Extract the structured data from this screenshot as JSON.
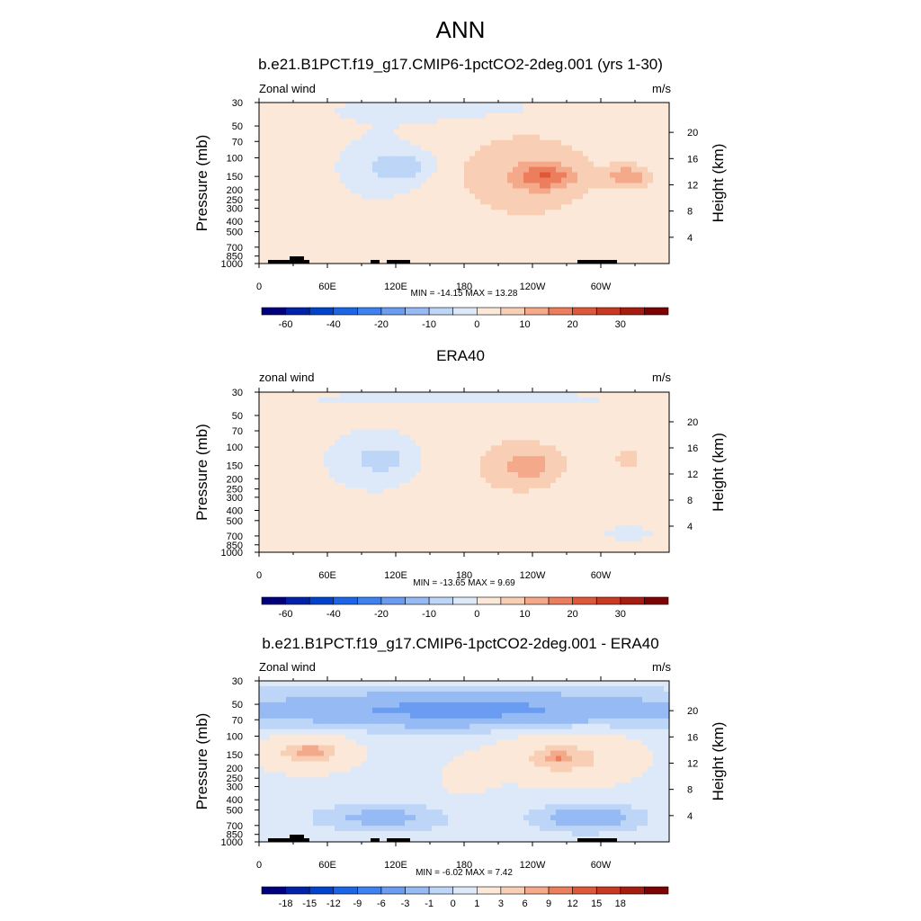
{
  "main_title": "ANN",
  "panels": [
    {
      "title": "b.e21.B1PCT.f19_g17.CMIP6-1pctCO2-2deg.001 (yrs 1-30)",
      "field_label": "Zonal wind",
      "units": "m/s",
      "stats": "MIN = -14.15  MAX =  13.28",
      "colorbar_labels": [
        "-60",
        "-40",
        "-20",
        "-10",
        "0",
        "10",
        "20",
        "30"
      ]
    },
    {
      "title": "ERA40",
      "field_label": "zonal wind",
      "units": "m/s",
      "stats": "MIN = -13.65  MAX =   9.69",
      "colorbar_labels": [
        "-60",
        "-40",
        "-20",
        "-10",
        "0",
        "10",
        "20",
        "30"
      ]
    },
    {
      "title": "b.e21.B1PCT.f19_g17.CMIP6-1pctCO2-2deg.001 - ERA40",
      "field_label": "Zonal wind",
      "units": "m/s",
      "stats": "MIN =  -6.02  MAX =   7.42",
      "colorbar_labels": [
        "-18",
        "-15",
        "-12",
        "-9",
        "-6",
        "-3",
        "-1",
        "0",
        "1",
        "3",
        "6",
        "9",
        "12",
        "15",
        "18"
      ]
    }
  ],
  "chart_data": [
    {
      "type": "heatmap",
      "title": "b.e21.B1PCT.f19_g17.CMIP6-1pctCO2-2deg.001 (yrs 1-30)",
      "subtitle": "Zonal wind",
      "units": "m/s",
      "xlabel": "",
      "ylabel": "Pressure (mb)",
      "y2label": "Height (km)",
      "x_ticks": [
        "0",
        "60E",
        "120E",
        "180",
        "120W",
        "60W"
      ],
      "y_ticks": [
        "30",
        "50",
        "70",
        "100",
        "150",
        "200",
        "250",
        "300",
        "400",
        "500",
        "700",
        "850",
        "1000"
      ],
      "y2_ticks": [
        "4",
        "8",
        "12",
        "16",
        "20"
      ],
      "xlim": [
        0,
        360
      ],
      "ylim": [
        1000,
        30
      ],
      "y_scale": "log",
      "contour_levels": [
        -70,
        -60,
        -50,
        -40,
        -30,
        -20,
        -15,
        -10,
        -5,
        0,
        5,
        10,
        15,
        20,
        25,
        30,
        40
      ],
      "min": -14.15,
      "max": 13.28,
      "colors": [
        "#00007f",
        "#0022a8",
        "#0044cc",
        "#1a66e6",
        "#3d82f0",
        "#6a9cf2",
        "#96baf4",
        "#bdd5f7",
        "#dde9f9",
        "#fbe8d8",
        "#f8cfb4",
        "#f3a98a",
        "#ec7e5d",
        "#e0583a",
        "#c93a22",
        "#a61c10",
        "#7d0202"
      ],
      "blobs": [
        {
          "x": 0.3,
          "y": 0.4,
          "rx": 0.12,
          "ry": 0.22,
          "value": -5
        },
        {
          "x": 0.36,
          "y": 0.4,
          "rx": 0.08,
          "ry": 0.1,
          "value": -8
        },
        {
          "x": 0.65,
          "y": 0.45,
          "rx": 0.22,
          "ry": 0.35,
          "value": 7
        },
        {
          "x": 0.7,
          "y": 0.46,
          "rx": 0.08,
          "ry": 0.09,
          "value": 13
        },
        {
          "x": 0.9,
          "y": 0.46,
          "rx": 0.06,
          "ry": 0.08,
          "value": 12
        },
        {
          "x": 0.18,
          "y": 0.88,
          "rx": 0.14,
          "ry": 0.08,
          "value": 3
        },
        {
          "x": 0.1,
          "y": 0.45,
          "rx": 0.03,
          "ry": 0.06,
          "value": 3
        },
        {
          "x": 0.5,
          "y": 0.05,
          "rx": 0.45,
          "ry": 0.12,
          "value": -3
        }
      ]
    },
    {
      "type": "heatmap",
      "title": "ERA40",
      "subtitle": "zonal wind",
      "units": "m/s",
      "xlabel": "",
      "ylabel": "Pressure (mb)",
      "y2label": "Height (km)",
      "x_ticks": [
        "0",
        "60E",
        "120E",
        "180",
        "120W",
        "60W"
      ],
      "y_ticks": [
        "30",
        "50",
        "70",
        "100",
        "150",
        "200",
        "250",
        "300",
        "400",
        "500",
        "700",
        "850",
        "1000"
      ],
      "y2_ticks": [
        "4",
        "8",
        "12",
        "16",
        "20"
      ],
      "xlim": [
        0,
        360
      ],
      "ylim": [
        1000,
        30
      ],
      "y_scale": "log",
      "contour_levels": [
        -70,
        -60,
        -50,
        -40,
        -30,
        -20,
        -15,
        -10,
        -5,
        0,
        5,
        10,
        15,
        20,
        25,
        30,
        40
      ],
      "min": -13.65,
      "max": 9.69,
      "colors": [
        "#00007f",
        "#0022a8",
        "#0044cc",
        "#1a66e6",
        "#3d82f0",
        "#6a9cf2",
        "#96baf4",
        "#bdd5f7",
        "#dde9f9",
        "#fbe8d8",
        "#f8cfb4",
        "#f3a98a",
        "#ec7e5d",
        "#e0583a",
        "#c93a22",
        "#a61c10",
        "#7d0202"
      ],
      "blobs": [
        {
          "x": 0.28,
          "y": 0.42,
          "rx": 0.14,
          "ry": 0.24,
          "value": -4
        },
        {
          "x": 0.3,
          "y": 0.42,
          "rx": 0.07,
          "ry": 0.09,
          "value": -7
        },
        {
          "x": 0.63,
          "y": 0.46,
          "rx": 0.18,
          "ry": 0.3,
          "value": 5
        },
        {
          "x": 0.66,
          "y": 0.46,
          "rx": 0.07,
          "ry": 0.1,
          "value": 8
        },
        {
          "x": 0.9,
          "y": 0.42,
          "rx": 0.04,
          "ry": 0.08,
          "value": 6
        },
        {
          "x": 0.2,
          "y": 0.88,
          "rx": 0.16,
          "ry": 0.07,
          "value": 3
        },
        {
          "x": 0.9,
          "y": 0.88,
          "rx": 0.08,
          "ry": 0.06,
          "value": -3
        },
        {
          "x": 0.5,
          "y": 0.04,
          "rx": 0.5,
          "ry": 0.06,
          "value": -3
        }
      ]
    },
    {
      "type": "heatmap",
      "title": "b.e21.B1PCT.f19_g17.CMIP6-1pctCO2-2deg.001 - ERA40",
      "subtitle": "Zonal wind",
      "units": "m/s",
      "xlabel": "",
      "ylabel": "Pressure (mb)",
      "y2label": "Height (km)",
      "x_ticks": [
        "0",
        "60E",
        "120E",
        "180",
        "120W",
        "60W"
      ],
      "y_ticks": [
        "30",
        "50",
        "70",
        "100",
        "150",
        "200",
        "250",
        "300",
        "400",
        "500",
        "700",
        "850",
        "1000"
      ],
      "y2_ticks": [
        "4",
        "8",
        "12",
        "16",
        "20"
      ],
      "xlim": [
        0,
        360
      ],
      "ylim": [
        1000,
        30
      ],
      "y_scale": "log",
      "contour_levels": [
        -21,
        -18,
        -15,
        -12,
        -9,
        -6,
        -3,
        -1,
        0,
        1,
        3,
        6,
        9,
        12,
        15,
        18,
        21
      ],
      "min": -6.02,
      "max": 7.42,
      "colors": [
        "#00007f",
        "#0022a8",
        "#0044cc",
        "#1a66e6",
        "#3d82f0",
        "#6a9cf2",
        "#96baf4",
        "#bdd5f7",
        "#dde9f9",
        "#fbe8d8",
        "#f8cfb4",
        "#f3a98a",
        "#ec7e5d",
        "#e0583a",
        "#c93a22",
        "#a61c10",
        "#7d0202"
      ],
      "blobs": [
        {
          "x": 0.5,
          "y": 0.18,
          "rx": 0.6,
          "ry": 0.12,
          "value": -4
        },
        {
          "x": 0.12,
          "y": 0.45,
          "rx": 0.14,
          "ry": 0.14,
          "value": 3
        },
        {
          "x": 0.12,
          "y": 0.44,
          "rx": 0.05,
          "ry": 0.04,
          "value": 6
        },
        {
          "x": 0.76,
          "y": 0.48,
          "rx": 0.2,
          "ry": 0.2,
          "value": 3
        },
        {
          "x": 0.73,
          "y": 0.48,
          "rx": 0.05,
          "ry": 0.05,
          "value": 6
        },
        {
          "x": 0.3,
          "y": 0.85,
          "rx": 0.15,
          "ry": 0.08,
          "value": -2
        },
        {
          "x": 0.8,
          "y": 0.85,
          "rx": 0.12,
          "ry": 0.08,
          "value": -3
        },
        {
          "x": 0.5,
          "y": 0.6,
          "rx": 0.1,
          "ry": 0.2,
          "value": 1
        }
      ]
    }
  ]
}
